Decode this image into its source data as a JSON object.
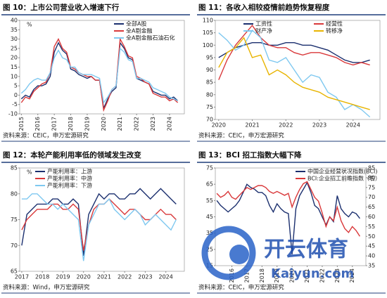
{
  "chart_data": [
    {
      "type": "line",
      "title": "图 10：上市公司营业收入增速下行",
      "note": "资料来源：CEIC，申万宏源研究",
      "ylabel": "%",
      "x": [
        2015,
        2015.25,
        2015.5,
        2015.75,
        2016,
        2016.25,
        2016.5,
        2016.75,
        2017,
        2017.25,
        2017.5,
        2017.75,
        2018,
        2018.25,
        2018.5,
        2018.75,
        2019,
        2019.25,
        2019.5,
        2019.75,
        2020,
        2020.25,
        2020.5,
        2020.75,
        2021,
        2021.25,
        2021.5,
        2021.75,
        2022,
        2022.25,
        2022.5,
        2022.75,
        2023,
        2023.25,
        2023.5,
        2023.75,
        2024,
        2024.25,
        2024.5
      ],
      "series": [
        {
          "name": "全部A股",
          "color": "#1b2f6e",
          "values": [
            -2,
            0,
            -1,
            3,
            5,
            5,
            6,
            10,
            23,
            28,
            24,
            22,
            14,
            13,
            11,
            10,
            9,
            10,
            8,
            8,
            -7,
            -2,
            2,
            4,
            28,
            25,
            20,
            19,
            9,
            8,
            7,
            6,
            2,
            1,
            0,
            0,
            -2,
            -1,
            -3
          ]
        },
        {
          "name": "全A剔金融",
          "color": "#d9383a",
          "values": [
            -4,
            -1,
            -2,
            2,
            4,
            6,
            7,
            12,
            26,
            30,
            25,
            23,
            15,
            14,
            12,
            11,
            10,
            10,
            8,
            8,
            -8,
            -3,
            3,
            5,
            30,
            26,
            21,
            20,
            10,
            9,
            7,
            6,
            1,
            0,
            -1,
            -1,
            -3,
            -2,
            -4
          ]
        },
        {
          "name": "全A剔金融石油石化",
          "color": "#7ec8f0",
          "values": [
            1,
            3,
            6,
            8,
            9,
            8,
            8,
            12,
            20,
            24,
            20,
            19,
            15,
            15,
            12,
            11,
            11,
            11,
            10,
            9,
            -4,
            -1,
            3,
            5,
            25,
            23,
            19,
            18,
            9,
            9,
            8,
            7,
            4,
            3,
            2,
            1,
            -1,
            -2,
            -3
          ]
        }
      ],
      "xlim": [
        2014.9,
        2024.9
      ],
      "xticks": [
        2015,
        2016,
        2017,
        2018,
        2019,
        2020,
        2021,
        2022,
        2023,
        2024
      ],
      "ylim": [
        -10,
        40
      ],
      "yticks": [
        -10,
        -5,
        0,
        5,
        10,
        15,
        20,
        25,
        30,
        35,
        40
      ],
      "legend": "upper right",
      "legend_columns": 1
    },
    {
      "type": "line",
      "title": "图 11：各收入相较疫情前趋势恢复程度",
      "note": "资料来源：CEIC，申万宏源研究",
      "x": [
        2020,
        2020.25,
        2020.5,
        2020.75,
        2021,
        2021.25,
        2021.5,
        2021.75,
        2022,
        2022.25,
        2022.5,
        2022.75,
        2023,
        2023.25,
        2023.5,
        2023.75,
        2024,
        2024.25,
        2024.5
      ],
      "series": [
        {
          "name": "工资性",
          "color": "#1b2f6e",
          "values": [
            95,
            97,
            99,
            100,
            101,
            101,
            100,
            100,
            101,
            101,
            100,
            100,
            99,
            98,
            96,
            94,
            93,
            93,
            94
          ]
        },
        {
          "name": "经营性",
          "color": "#d9383a",
          "values": [
            86,
            94,
            100,
            104,
            108,
            103,
            100,
            99,
            99,
            97,
            96,
            97,
            97,
            96,
            95,
            93,
            92,
            93,
            92
          ]
        },
        {
          "name": "财产净",
          "color": "#7ec8f0",
          "values": [
            105,
            102,
            98,
            100,
            106,
            103,
            94,
            93,
            95,
            90,
            85,
            88,
            87,
            81,
            79,
            74,
            76,
            74,
            71
          ]
        },
        {
          "name": "转移净",
          "color": "#e8b400",
          "values": [
            91,
            97,
            99,
            103,
            95,
            96,
            88,
            90,
            88,
            85,
            83,
            82,
            81,
            79,
            78,
            77,
            76,
            75,
            74
          ]
        }
      ],
      "xlim": [
        2019.9,
        2024.8
      ],
      "xticks": [
        2020,
        2021,
        2022,
        2023,
        2024
      ],
      "ylim": [
        70,
        110
      ],
      "yticks": [
        70,
        75,
        80,
        85,
        90,
        95,
        100,
        105,
        110
      ],
      "legend": "upper center",
      "legend_columns": 2
    },
    {
      "type": "line",
      "title": "图 12：本轮产能利用率低的领域发生改变",
      "note": "资料来源：Wind，申万宏源研究",
      "ylabel": "%",
      "x": [
        2017,
        2017.25,
        2017.5,
        2017.75,
        2018,
        2018.25,
        2018.5,
        2018.75,
        2019,
        2019.25,
        2019.5,
        2019.75,
        2020,
        2020.25,
        2020.5,
        2020.75,
        2021,
        2021.25,
        2021.5,
        2021.75,
        2022,
        2022.25,
        2022.5,
        2022.75,
        2023,
        2023.25,
        2023.5,
        2023.75,
        2024,
        2024.25,
        2024.5
      ],
      "series": [
        {
          "name": "产能利用率：上游",
          "color": "#1b2f6e",
          "values": [
            70,
            76,
            77,
            78,
            78,
            78,
            79,
            79,
            78,
            78,
            79,
            78,
            68,
            76,
            78,
            80,
            79,
            80,
            80,
            79,
            79,
            80,
            80,
            81,
            80,
            79,
            80,
            81,
            80,
            79,
            78
          ]
        },
        {
          "name": "产能利用率：中游",
          "color": "#d9383a",
          "values": [
            73,
            75,
            76,
            77,
            77,
            77,
            78,
            78,
            77,
            77,
            78,
            77,
            69,
            74,
            77,
            78,
            78,
            79,
            78,
            77,
            76,
            77,
            77,
            76,
            75,
            75,
            76,
            77,
            76,
            76,
            75
          ]
        },
        {
          "name": "产能利用率：下游",
          "color": "#7ec8f0",
          "values": [
            79,
            79,
            80,
            80,
            79,
            78,
            78,
            77,
            78,
            77,
            76,
            75,
            67,
            74,
            76,
            78,
            78,
            79,
            77,
            76,
            75,
            76,
            77,
            76,
            74,
            75,
            76,
            75,
            74,
            73,
            75
          ]
        }
      ],
      "xlim": [
        2016.9,
        2024.9
      ],
      "xticks": [
        2017,
        2018,
        2019,
        2020,
        2021,
        2022,
        2023,
        2024
      ],
      "ylim": [
        65,
        85
      ],
      "yticks": [
        65,
        70,
        75,
        80,
        85
      ],
      "legend": "upper left",
      "legend_columns": 1
    },
    {
      "type": "line",
      "title": "图 13：BCI 招工指数大幅下降",
      "note": "资料来源：CEIC，申万宏源研究",
      "x": [
        2015,
        2015.25,
        2015.5,
        2015.75,
        2016,
        2016.25,
        2016.5,
        2016.75,
        2017,
        2017.25,
        2017.5,
        2017.75,
        2018,
        2018.25,
        2018.5,
        2018.75,
        2019,
        2019.25,
        2019.5,
        2019.75,
        2020,
        2020.25,
        2020.5,
        2020.75,
        2021,
        2021.25,
        2021.5,
        2021.75,
        2022,
        2022.25,
        2022.5,
        2022.75,
        2023,
        2023.25,
        2023.5,
        2023.75,
        2024,
        2024.25,
        2024.5
      ],
      "series": [
        {
          "name": "中国企业经营状况指数(BCI)",
          "color": "#1b2f6e",
          "values": [
            55,
            52,
            50,
            48,
            50,
            52,
            55,
            60,
            65,
            63,
            62,
            60,
            60,
            58,
            52,
            48,
            53,
            50,
            48,
            47,
            22,
            50,
            58,
            62,
            66,
            60,
            52,
            50,
            45,
            40,
            45,
            42,
            58,
            50,
            47,
            45,
            48,
            47,
            44
          ]
        },
        {
          "name": "BCI:企业招工前瞻指数（右）",
          "color": "#d9383a",
          "axis": "y2",
          "values": [
            72,
            70,
            71,
            73,
            70,
            69,
            71,
            73,
            75,
            74,
            75,
            76,
            76,
            75,
            73,
            72,
            73,
            72,
            71,
            72,
            65,
            70,
            74,
            77,
            78,
            74,
            70,
            68,
            62,
            55,
            60,
            58,
            65,
            58,
            54,
            52,
            55,
            53,
            50
          ]
        }
      ],
      "xlim": [
        2014.9,
        2024.9
      ],
      "xticks": [
        2016,
        2017,
        2018,
        2019,
        2020,
        2021,
        2022,
        2023,
        2024
      ],
      "ylim": [
        15,
        75
      ],
      "yticks": [
        15,
        25,
        35,
        45,
        55,
        65,
        75
      ],
      "y2lim": [
        35,
        85
      ],
      "y2ticks": [
        35,
        40,
        45,
        50,
        55,
        60,
        65,
        70,
        75,
        80,
        85
      ],
      "legend": "upper right",
      "legend_columns": 1
    }
  ],
  "watermark": {
    "brand": "开云体育",
    "url": "Kaiyun.com"
  }
}
